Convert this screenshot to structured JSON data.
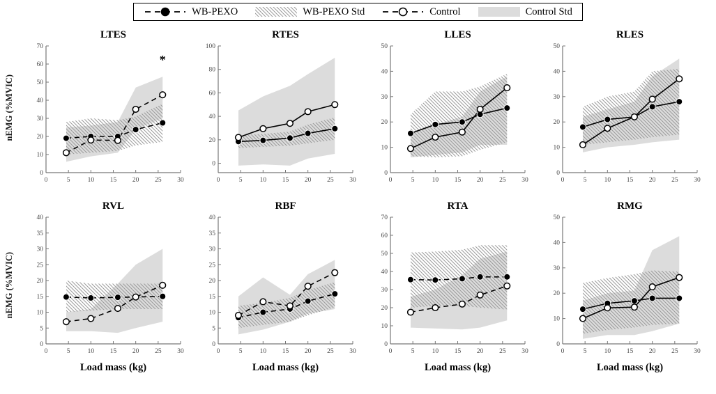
{
  "legend": {
    "items": [
      {
        "label": "WB-PEXO",
        "swatch": "dashed-line-filled-marker"
      },
      {
        "label": "WB-PEXO Std",
        "swatch": "hatch-fill"
      },
      {
        "label": "Control",
        "swatch": "dashed-line-open-marker"
      },
      {
        "label": "Control Std",
        "swatch": "gray-fill"
      }
    ]
  },
  "colors": {
    "line": "#000000",
    "marker_fill": "#000000",
    "marker_open": "#ffffff",
    "control_std_fill": "#dcdcdc",
    "hatch_line": "#9a9a9a",
    "axis": "#777777",
    "tick_text": "#4a4a4a"
  },
  "chart_data": {
    "type": "line",
    "xlabel": "Load mass (kg)",
    "ylabel": "nEMG (%MVIC)",
    "x": [
      4.5,
      10,
      16,
      20,
      26
    ],
    "xlim": [
      0,
      30
    ],
    "xticks": [
      0,
      5,
      10,
      15,
      20,
      25,
      30
    ],
    "series_names": [
      "WB-PEXO",
      "Control"
    ],
    "band_names": [
      "WB-PEXO Std",
      "Control Std"
    ],
    "subplots": [
      {
        "title": "LTES",
        "ylim": [
          0,
          70
        ],
        "ytick_step": 10,
        "line_style": "dashed",
        "wb_pexo": [
          19,
          20,
          20,
          23.8,
          27.5
        ],
        "control": [
          11,
          18,
          17.8,
          35,
          43
        ],
        "wb_pexo_std": {
          "lower": [
            10,
            11,
            12,
            15,
            17
          ],
          "upper": [
            28,
            30,
            29,
            31,
            38
          ]
        },
        "control_std": {
          "lower": [
            6,
            9,
            11,
            24,
            30
          ],
          "upper": [
            25,
            26,
            28,
            47,
            53
          ]
        },
        "annotation": {
          "text": "*",
          "x": 26,
          "y": 60
        }
      },
      {
        "title": "RTES",
        "ylim": [
          -8,
          100
        ],
        "ytick_step": 20,
        "line_style": "solid",
        "wb_pexo": [
          18.5,
          19.5,
          21.5,
          25.5,
          29.5
        ],
        "control": [
          22,
          29.5,
          34,
          44,
          50
        ],
        "wb_pexo_std": {
          "lower": [
            13,
            14,
            15,
            17,
            20
          ],
          "upper": [
            24,
            25,
            27,
            33,
            39
          ]
        },
        "control_std": {
          "lower": [
            -2,
            -1,
            -2,
            4,
            8
          ],
          "upper": [
            45,
            57,
            66,
            76,
            90
          ]
        }
      },
      {
        "title": "LLES",
        "ylim": [
          0,
          50
        ],
        "ytick_step": 10,
        "line_style": "solid",
        "wb_pexo": [
          15.5,
          19,
          20,
          23,
          25.5
        ],
        "control": [
          9.5,
          14,
          16,
          25,
          33.5
        ],
        "wb_pexo_std": {
          "lower": [
            6.5,
            6,
            6.5,
            9,
            12
          ],
          "upper": [
            23,
            32,
            32,
            34,
            39
          ]
        },
        "control_std": {
          "lower": [
            6,
            7,
            8,
            11,
            11
          ],
          "upper": [
            16,
            19,
            22,
            32,
            38
          ]
        }
      },
      {
        "title": "RLES",
        "ylim": [
          0,
          50
        ],
        "ytick_step": 10,
        "line_style": "solid",
        "wb_pexo": [
          18,
          21,
          22,
          26,
          28
        ],
        "control": [
          11,
          17.5,
          22,
          29,
          37
        ],
        "wb_pexo_std": {
          "lower": [
            11,
            12,
            13,
            14,
            15
          ],
          "upper": [
            26,
            30,
            32,
            40,
            41
          ]
        },
        "control_std": {
          "lower": [
            8,
            10,
            11,
            12,
            13
          ],
          "upper": [
            22,
            25,
            28,
            38,
            45
          ]
        }
      },
      {
        "title": "RVL",
        "ylim": [
          0,
          40
        ],
        "ytick_step": 5,
        "line_style": "dashed",
        "wb_pexo": [
          14.8,
          14.5,
          14.7,
          14.8,
          15
        ],
        "control": [
          7,
          8,
          11.2,
          14.8,
          18.5
        ],
        "wb_pexo_std": {
          "lower": [
            10,
            10.5,
            11,
            11,
            11
          ],
          "upper": [
            20,
            19,
            19,
            19,
            19
          ]
        },
        "control_std": {
          "lower": [
            4,
            4,
            3.5,
            5,
            7
          ],
          "upper": [
            10,
            11,
            19,
            25,
            30
          ]
        }
      },
      {
        "title": "RBF",
        "ylim": [
          0,
          40
        ],
        "ytick_step": 5,
        "line_style": "dashed",
        "wb_pexo": [
          8.3,
          10,
          11,
          13.5,
          15.8
        ],
        "control": [
          9,
          13.3,
          12,
          18.2,
          22.5
        ],
        "wb_pexo_std": {
          "lower": [
            5,
            6,
            7,
            9,
            11.5
          ],
          "upper": [
            12,
            13,
            14.5,
            17,
            19.5
          ]
        },
        "control_std": {
          "lower": [
            3,
            4.5,
            7,
            9.5,
            11
          ],
          "upper": [
            15,
            21,
            15.5,
            22,
            26.5
          ]
        }
      },
      {
        "title": "RTA",
        "ylim": [
          0,
          70
        ],
        "ytick_step": 10,
        "line_style": "dashed",
        "wb_pexo": [
          35.5,
          35.3,
          36,
          37,
          37
        ],
        "control": [
          17.5,
          20,
          22,
          27,
          32
        ],
        "wb_pexo_std": {
          "lower": [
            20,
            21,
            21,
            20,
            19
          ],
          "upper": [
            50.5,
            51,
            52,
            54.5,
            54.5
          ]
        },
        "control_std": {
          "lower": [
            9,
            8.5,
            8,
            9,
            13
          ],
          "upper": [
            26,
            30,
            38,
            47,
            51
          ]
        }
      },
      {
        "title": "RMG",
        "ylim": [
          0,
          50
        ],
        "ytick_step": 10,
        "line_style": "solid",
        "wb_pexo": [
          13.7,
          16,
          17,
          18,
          18
        ],
        "control": [
          10,
          14.2,
          14.5,
          22.5,
          26.2
        ],
        "wb_pexo_std": {
          "lower": [
            4,
            5.5,
            6.5,
            7.5,
            8
          ],
          "upper": [
            24,
            26,
            27.5,
            29,
            28.5
          ]
        },
        "control_std": {
          "lower": [
            2,
            3.5,
            3.5,
            5,
            8
          ],
          "upper": [
            17,
            20,
            21,
            37,
            42.5
          ]
        }
      }
    ]
  }
}
